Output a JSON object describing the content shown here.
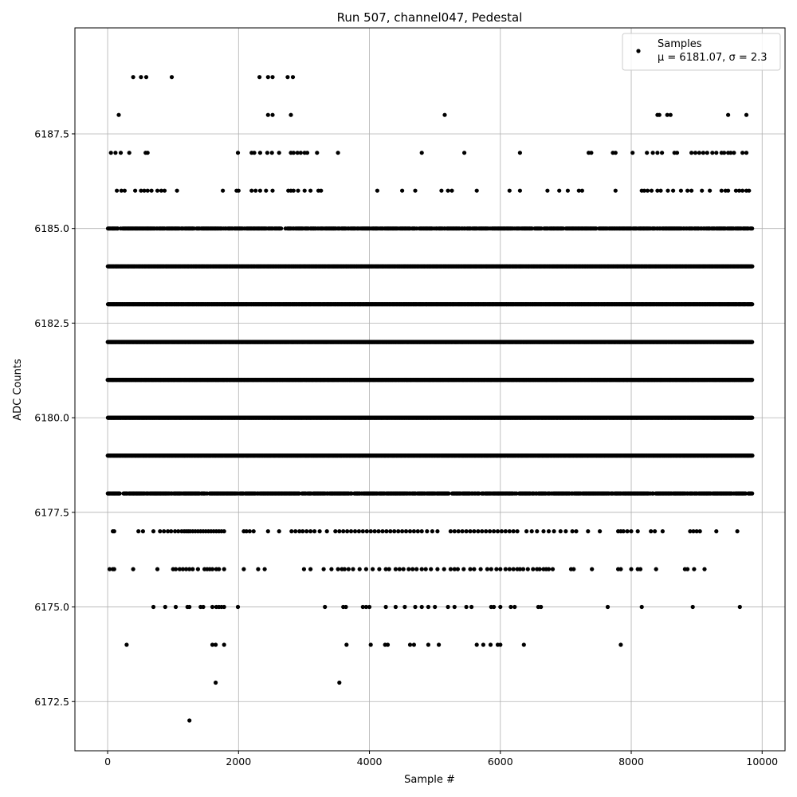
{
  "chart_data": {
    "type": "scatter",
    "title": "Run 507, channel047, Pedestal",
    "xlabel": "Sample #",
    "ylabel": "ADC Counts",
    "xlim": [
      -500,
      10350
    ],
    "ylim": [
      6171.2,
      6190.3
    ],
    "xticks": [
      0,
      2000,
      4000,
      6000,
      8000,
      10000
    ],
    "xtick_labels": [
      "0",
      "2000",
      "4000",
      "6000",
      "8000",
      "10000"
    ],
    "yticks": [
      6172.5,
      6175.0,
      6177.5,
      6180.0,
      6182.5,
      6185.0,
      6187.5
    ],
    "ytick_labels": [
      "6172.5",
      "6175.0",
      "6177.5",
      "6180.0",
      "6182.5",
      "6185.0",
      "6187.5"
    ],
    "grid": true,
    "legend": {
      "placement": "top-right",
      "entry": "Samples",
      "stats": "μ = 6181.07, σ = 2.3"
    },
    "marker_color": "#000000",
    "series": [
      {
        "name": "Samples",
        "dense_levels": [
          {
            "y": 6178,
            "x_range": [
              0,
              9850
            ]
          },
          {
            "y": 6179,
            "x_range": [
              0,
              9850
            ]
          },
          {
            "y": 6180,
            "x_range": [
              0,
              9850
            ]
          },
          {
            "y": 6181,
            "x_range": [
              0,
              9850
            ]
          },
          {
            "y": 6182,
            "x_range": [
              0,
              9850
            ]
          },
          {
            "y": 6183,
            "x_range": [
              0,
              9850
            ]
          },
          {
            "y": 6184,
            "x_range": [
              0,
              9850
            ]
          },
          {
            "y": 6185,
            "x_range": [
              0,
              9850
            ]
          }
        ],
        "points": [
          {
            "y": 6189,
            "x": [
              390,
              510,
              590,
              980,
              2320,
              2450,
              2520,
              2750,
              2830
            ]
          },
          {
            "y": 6188,
            "x": [
              170,
              2450,
              2520,
              2800,
              5150,
              8400,
              8430,
              8550,
              8600,
              9480,
              9760
            ]
          },
          {
            "y": 6187,
            "x": [
              50,
              120,
              200,
              330,
              580,
              610,
              1990,
              2200,
              2240,
              2330,
              2440,
              2510,
              2620,
              2800,
              2840,
              2900,
              2950,
              3010,
              3050,
              3200,
              3520,
              4800,
              5450,
              6300,
              7350,
              7390,
              7720,
              7760,
              8020,
              8240,
              8330,
              8400,
              8470,
              8660,
              8700,
              8920,
              8980,
              9040,
              9100,
              9160,
              9240,
              9300,
              9380,
              9420,
              9480,
              9520,
              9570,
              9700,
              9760
            ]
          },
          {
            "y": 6186,
            "x": [
              140,
              210,
              260,
              420,
              510,
              560,
              610,
              670,
              760,
              820,
              870,
              1060,
              1760,
              1970,
              2000,
              2200,
              2260,
              2330,
              2420,
              2520,
              2760,
              2800,
              2840,
              2910,
              3010,
              3100,
              3220,
              3260,
              4120,
              4500,
              4700,
              5100,
              5200,
              5260,
              5640,
              6140,
              6300,
              6720,
              6900,
              7030,
              7200,
              7250,
              7760,
              8160,
              8200,
              8250,
              8310,
              8400,
              8450,
              8560,
              8640,
              8760,
              8860,
              8920,
              9080,
              9200,
              9380,
              9440,
              9480,
              9600,
              9650,
              9700,
              9760,
              9800
            ]
          },
          {
            "y": 6177,
            "x": [
              80,
              100,
              470,
              540,
              700,
              800,
              860,
              920,
              970,
              1030,
              1080,
              1130,
              1170,
              1200,
              1230,
              1260,
              1300,
              1340,
              1380,
              1420,
              1460,
              1500,
              1540,
              1580,
              1620,
              1660,
              1700,
              1740,
              1780,
              2080,
              2120,
              2170,
              2230,
              2450,
              2620,
              2810,
              2870,
              2930,
              2980,
              3040,
              3100,
              3160,
              3240,
              3350,
              3480,
              3540,
              3600,
              3660,
              3720,
              3780,
              3840,
              3900,
              3960,
              4020,
              4080,
              4140,
              4200,
              4260,
              4320,
              4380,
              4440,
              4500,
              4560,
              4620,
              4680,
              4740,
              4800,
              4880,
              4960,
              5040,
              5240,
              5300,
              5360,
              5420,
              5480,
              5540,
              5600,
              5660,
              5720,
              5780,
              5840,
              5900,
              5960,
              6020,
              6080,
              6140,
              6200,
              6260,
              6400,
              6480,
              6560,
              6660,
              6740,
              6820,
              6920,
              7000,
              7100,
              7160,
              7340,
              7520,
              7800,
              7840,
              7880,
              7940,
              8000,
              8100,
              8300,
              8360,
              8480,
              8900,
              8950,
              9000,
              9050,
              9300,
              9620
            ]
          },
          {
            "y": 6176,
            "x": [
              30,
              80,
              100,
              390,
              760,
              1000,
              1040,
              1100,
              1150,
              1200,
              1250,
              1300,
              1380,
              1480,
              1520,
              1560,
              1600,
              1660,
              1700,
              1780,
              2080,
              2300,
              2400,
              3000,
              3100,
              3300,
              3420,
              3520,
              3580,
              3620,
              3680,
              3750,
              3850,
              3950,
              4050,
              4150,
              4250,
              4300,
              4400,
              4460,
              4520,
              4600,
              4660,
              4720,
              4800,
              4860,
              4940,
              5040,
              5140,
              5240,
              5300,
              5350,
              5440,
              5540,
              5600,
              5700,
              5800,
              5860,
              5940,
              6000,
              6080,
              6140,
              6200,
              6260,
              6300,
              6350,
              6420,
              6500,
              6560,
              6600,
              6660,
              6700,
              6740,
              6800,
              7080,
              7120,
              7400,
              7800,
              7840,
              8000,
              8100,
              8140,
              8380,
              8820,
              8860,
              8960,
              9120
            ]
          },
          {
            "y": 6175,
            "x": [
              700,
              880,
              1040,
              1220,
              1250,
              1420,
              1460,
              1600,
              1660,
              1700,
              1740,
              1780,
              1990,
              3320,
              3600,
              3640,
              3900,
              3950,
              4000,
              4250,
              4400,
              4540,
              4700,
              4800,
              4900,
              5000,
              5200,
              5300,
              5480,
              5560,
              5860,
              5900,
              6000,
              6160,
              6220,
              6580,
              6620,
              7640,
              8160,
              8940,
              9660
            ]
          },
          {
            "y": 6174,
            "x": [
              290,
              1600,
              1650,
              1780,
              3650,
              4020,
              4240,
              4280,
              4620,
              4680,
              4900,
              5060,
              5640,
              5740,
              5850,
              5960,
              6000,
              6360,
              7840
            ]
          },
          {
            "y": 6173,
            "x": [
              1650,
              3540
            ]
          },
          {
            "y": 6172,
            "x": [
              1250
            ]
          }
        ]
      }
    ]
  }
}
